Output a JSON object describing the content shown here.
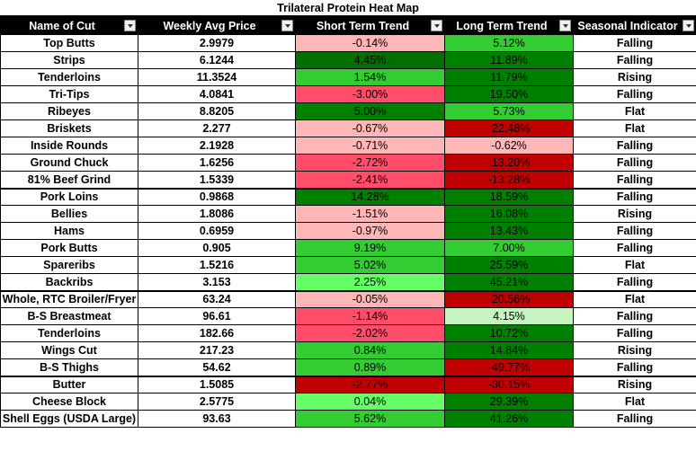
{
  "title": "Trilateral Protein Heat Map",
  "colors": {
    "header_bg": "#000000",
    "header_text": "#ffffff",
    "light_pink": "#ffb6b6",
    "red_pink": "#ff4d6a",
    "dark_red": "#c00000",
    "light_green": "#c6f5c0",
    "bright_green": "#66ff66",
    "mid_green": "#33cc33",
    "dark_green": "#008000"
  },
  "columns": [
    {
      "label": "Name of Cut"
    },
    {
      "label": "Weekly Avg Price"
    },
    {
      "label": "Short Term Trend"
    },
    {
      "label": "Long Term Trend"
    },
    {
      "label": "Seasonal Indicator"
    }
  ],
  "rows": [
    {
      "name": "Top Butts",
      "price": "2.9979",
      "short": "-0.14%",
      "short_color": "#ffb6b6",
      "long": "5.12%",
      "long_color": "#33cc33",
      "season": "Falling"
    },
    {
      "name": "Strips",
      "price": "6.1244",
      "short": "4.45%",
      "short_color": "#007000",
      "long": "11.89%",
      "long_color": "#008000",
      "season": "Falling"
    },
    {
      "name": "Tenderloins",
      "price": "11.3524",
      "short": "1.54%",
      "short_color": "#33cc33",
      "long": "11.79%",
      "long_color": "#008000",
      "season": "Rising"
    },
    {
      "name": "Tri-Tips",
      "price": "4.0841",
      "short": "-3.00%",
      "short_color": "#ff4d6a",
      "long": "19.50%",
      "long_color": "#008000",
      "season": "Falling"
    },
    {
      "name": "Ribeyes",
      "price": "8.8205",
      "short": "5.00%",
      "short_color": "#008000",
      "long": "5.73%",
      "long_color": "#33cc33",
      "season": "Flat"
    },
    {
      "name": "Briskets",
      "price": "2.277",
      "short": "-0.67%",
      "short_color": "#ffb6b6",
      "long": "-22.48%",
      "long_color": "#c00000",
      "season": "Flat"
    },
    {
      "name": "Inside Rounds",
      "price": "2.1928",
      "short": "-0.71%",
      "short_color": "#ffb6b6",
      "long": "-0.62%",
      "long_color": "#ffb6b6",
      "season": "Falling"
    },
    {
      "name": "Ground Chuck",
      "price": "1.6256",
      "short": "-2.72%",
      "short_color": "#ff4d6a",
      "long": "-13.20%",
      "long_color": "#c00000",
      "season": "Falling"
    },
    {
      "name": "81% Beef Grind",
      "price": "1.5339",
      "short": "-2.41%",
      "short_color": "#ff4d6a",
      "long": "-13.28%",
      "long_color": "#c00000",
      "season": "Falling",
      "group_end": true
    },
    {
      "name": "Pork Loins",
      "price": "0.9868",
      "short": "14.28%",
      "short_color": "#008000",
      "long": "18.59%",
      "long_color": "#008000",
      "season": "Falling"
    },
    {
      "name": "Bellies",
      "price": "1.8086",
      "short": "-1.51%",
      "short_color": "#ffb6b6",
      "long": "16.08%",
      "long_color": "#008000",
      "season": "Rising"
    },
    {
      "name": "Hams",
      "price": "0.6959",
      "short": "-0.97%",
      "short_color": "#ffb6b6",
      "long": "13.43%",
      "long_color": "#008000",
      "season": "Falling"
    },
    {
      "name": "Pork Butts",
      "price": "0.905",
      "short": "9.19%",
      "short_color": "#33cc33",
      "long": "7.00%",
      "long_color": "#33cc33",
      "season": "Falling"
    },
    {
      "name": "Spareribs",
      "price": "1.5216",
      "short": "5.02%",
      "short_color": "#33cc33",
      "long": "25.59%",
      "long_color": "#008000",
      "season": "Flat"
    },
    {
      "name": "Backribs",
      "price": "3.153",
      "short": "2.25%",
      "short_color": "#66ff66",
      "long": "45.21%",
      "long_color": "#008000",
      "season": "Falling",
      "group_end": true
    },
    {
      "name": "Whole, RTC Broiler/Fryer",
      "price": "63.24",
      "short": "-0.05%",
      "short_color": "#ffb6b6",
      "long": "-20.56%",
      "long_color": "#c00000",
      "season": "Flat"
    },
    {
      "name": "B-S Breastmeat",
      "price": "96.61",
      "short": "-1.14%",
      "short_color": "#ff4d6a",
      "long": "4.15%",
      "long_color": "#c6f5c0",
      "season": "Falling"
    },
    {
      "name": "Tenderloins",
      "price": "182.66",
      "short": "-2.02%",
      "short_color": "#ff4d6a",
      "long": "10.72%",
      "long_color": "#008000",
      "season": "Falling"
    },
    {
      "name": "Wings Cut",
      "price": "217.23",
      "short": "0.84%",
      "short_color": "#33cc33",
      "long": "14.84%",
      "long_color": "#008000",
      "season": "Rising"
    },
    {
      "name": "B-S Thighs",
      "price": "54.62",
      "short": "0.89%",
      "short_color": "#33cc33",
      "long": "-49.77%",
      "long_color": "#c00000",
      "season": "Falling",
      "group_end": true
    },
    {
      "name": "Butter",
      "price": "1.5085",
      "short": "-2.77%",
      "short_color": "#c00000",
      "long": "-30.15%",
      "long_color": "#c00000",
      "season": "Rising"
    },
    {
      "name": "Cheese Block",
      "price": "2.5775",
      "short": "0.04%",
      "short_color": "#66ff66",
      "long": "29.39%",
      "long_color": "#008000",
      "season": "Flat"
    },
    {
      "name": "Shell Eggs (USDA Large)",
      "price": "93.63",
      "short": "5.62%",
      "short_color": "#33cc33",
      "long": "41.26%",
      "long_color": "#008000",
      "season": "Falling"
    }
  ]
}
